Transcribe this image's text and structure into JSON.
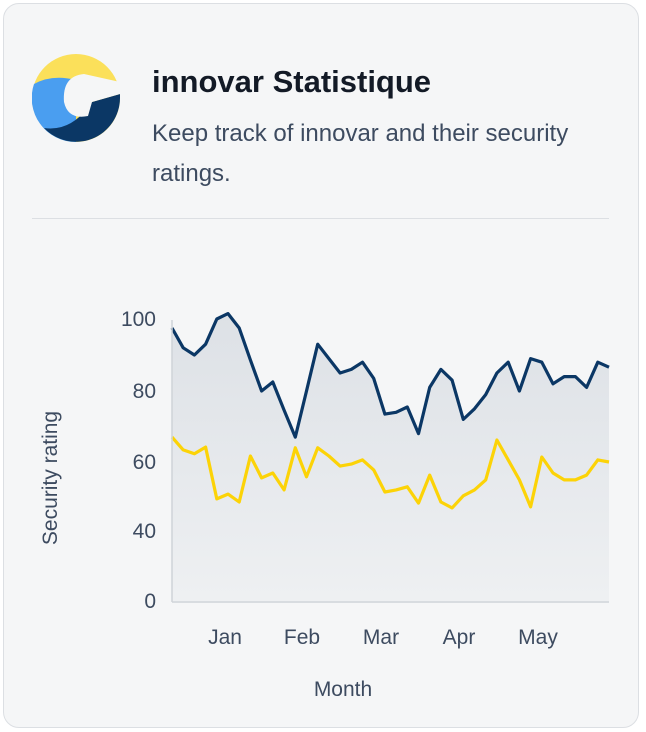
{
  "header": {
    "title": "innovar Statistique",
    "subtitle": "Keep track of innovar and their security ratings."
  },
  "colors": {
    "navy": "#0b3765",
    "yellow": "#fcd307",
    "logo_blue": "#4a9ef0",
    "logo_yellow": "#fbe05a"
  },
  "chart_data": {
    "type": "area",
    "xlabel": "Month",
    "ylabel": "Security rating",
    "y_ticks": [
      "0",
      "40",
      "60",
      "80",
      "100"
    ],
    "x_ticks": [
      "Jan",
      "Feb",
      "Mar",
      "Apr",
      "May"
    ],
    "grid": false,
    "series": [
      {
        "color": "#0b3765",
        "filled": true,
        "values": [
          97.5,
          92,
          90,
          93,
          100,
          101.5,
          97.5,
          88.6,
          80,
          82.5,
          74.6,
          67,
          80,
          93,
          89,
          85,
          86,
          88,
          83.5,
          73.5,
          74,
          75.5,
          68,
          81,
          86,
          83,
          72,
          75,
          79,
          85,
          88,
          80,
          89,
          88,
          82,
          84,
          84,
          81,
          88,
          86.6
        ]
      },
      {
        "color": "#fcd307",
        "filled": false,
        "values": [
          67,
          63.4,
          62.3,
          64.2,
          49.3,
          50.7,
          48.4,
          61.7,
          55.4,
          56.8,
          51.9,
          64,
          55.7,
          64,
          61.7,
          58.8,
          59.4,
          60.6,
          57.7,
          51.3,
          51.9,
          52.8,
          48.1,
          56.2,
          48.4,
          46.7,
          50.2,
          51.9,
          54.8,
          66.2,
          60.6,
          54.8,
          47,
          61.4,
          56.8,
          54.8,
          54.8,
          56.2,
          60.6,
          60
        ]
      }
    ]
  }
}
